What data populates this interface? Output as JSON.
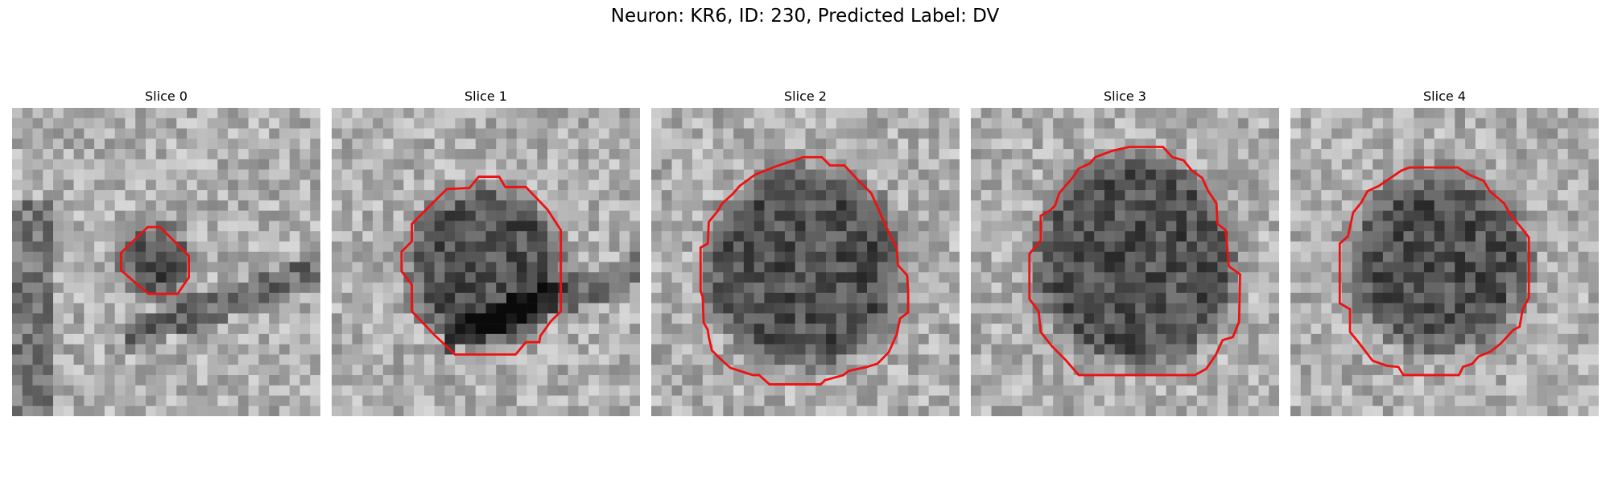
{
  "figure": {
    "title": "Neuron: KR6, ID: 230, Predicted Label: DV"
  },
  "panels": [
    {
      "title": "Slice 0"
    },
    {
      "title": "Slice 1"
    },
    {
      "title": "Slice 2"
    },
    {
      "title": "Slice 3"
    },
    {
      "title": "Slice 4"
    }
  ],
  "colors": {
    "contour": "#ee1111",
    "background": "#ffffff"
  }
}
